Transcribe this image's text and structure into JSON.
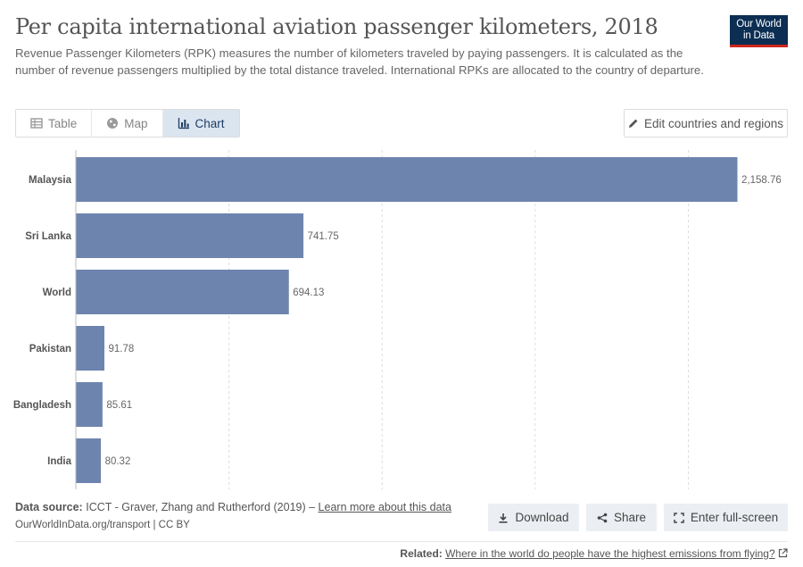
{
  "header": {
    "title": "Per capita international aviation passenger kilometers, 2018",
    "subtitle": "Revenue Passenger Kilometers (RPK) measures the number of kilometers traveled by paying passengers. It is calculated as the number of revenue passengers multiplied by the total distance traveled. International RPKs are allocated to the country of departure.",
    "logo_line1": "Our World",
    "logo_line2": "in Data"
  },
  "tabs": [
    {
      "label": "Table",
      "icon": "table-icon",
      "active": false
    },
    {
      "label": "Map",
      "icon": "globe-icon",
      "active": false
    },
    {
      "label": "Chart",
      "icon": "chart-icon",
      "active": true
    }
  ],
  "edit_button": {
    "label": "Edit countries and regions",
    "icon": "pencil-icon"
  },
  "chart_data": {
    "type": "bar",
    "orientation": "horizontal",
    "categories": [
      "Malaysia",
      "Sri Lanka",
      "World",
      "Pakistan",
      "Bangladesh",
      "India"
    ],
    "values": [
      2158.76,
      741.75,
      694.13,
      91.78,
      85.61,
      80.32
    ],
    "value_labels": [
      "2,158.76",
      "741.75",
      "694.13",
      "91.78",
      "85.61",
      "80.32"
    ],
    "xlim": [
      0,
      2158.76
    ],
    "grid": true,
    "bar_color": "#6d84ae"
  },
  "footer": {
    "source_label": "Data source:",
    "source_text": "ICCT - Graver, Zhang and Rutherford (2019) –",
    "source_link": "Learn more about this data",
    "url": "OurWorldInData.org/transport | CC BY",
    "download_label": "Download",
    "share_label": "Share",
    "fullscreen_label": "Enter full-screen",
    "related_label": "Related:",
    "related_link": "Where in the world do people have the highest emissions from flying?"
  }
}
